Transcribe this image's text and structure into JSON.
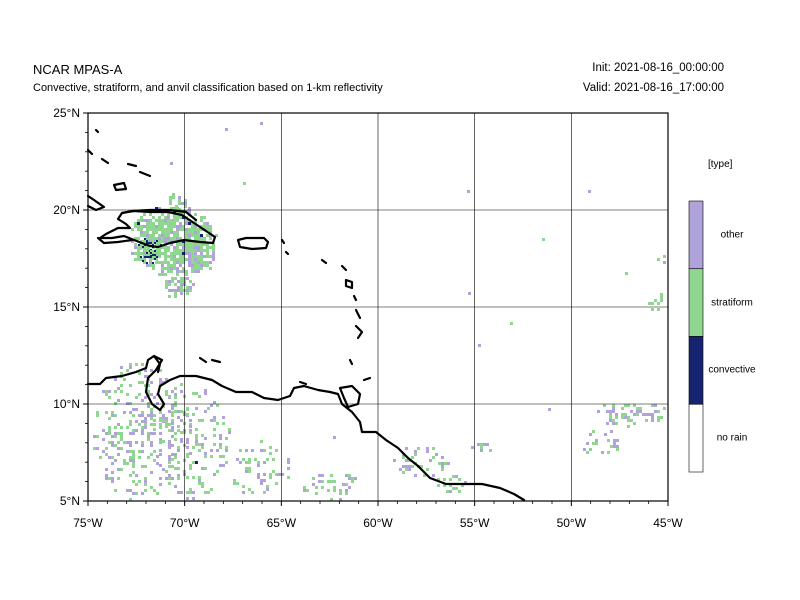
{
  "header": {
    "title": "NCAR MPAS-A",
    "subtitle": "Convective, stratiform, and anvil classification based on 1-km reflectivity",
    "init": "Init: 2021-08-16_00:00:00",
    "valid": "Valid: 2021-08-16_17:00:00"
  },
  "map": {
    "lon_range": [
      -75,
      -45
    ],
    "lat_range": [
      5,
      25
    ],
    "lon_ticks": [
      -75,
      -70,
      -65,
      -60,
      -55,
      -50,
      -45
    ],
    "lat_ticks": [
      5,
      10,
      15,
      20,
      25
    ],
    "lon_tick_labels": [
      "75°W",
      "70°W",
      "65°W",
      "60°W",
      "55°W",
      "50°W",
      "45°W"
    ],
    "lat_tick_labels": [
      "5°N",
      "10°N",
      "15°N",
      "20°N",
      "25°N"
    ],
    "gridlines": true
  },
  "legend": {
    "title": "[type]",
    "placement": "right",
    "categories": [
      {
        "label": "other",
        "color": "#b0a3dc"
      },
      {
        "label": "stratiform",
        "color": "#8fd690"
      },
      {
        "label": "convective",
        "color": "#16246f"
      },
      {
        "label": "no rain",
        "color": "#ffffff"
      }
    ]
  },
  "colors": {
    "other": "#b0a3dc",
    "stratiform": "#8fd690",
    "convective": "#16246f",
    "coast": "#000000",
    "grid": "#000000"
  }
}
